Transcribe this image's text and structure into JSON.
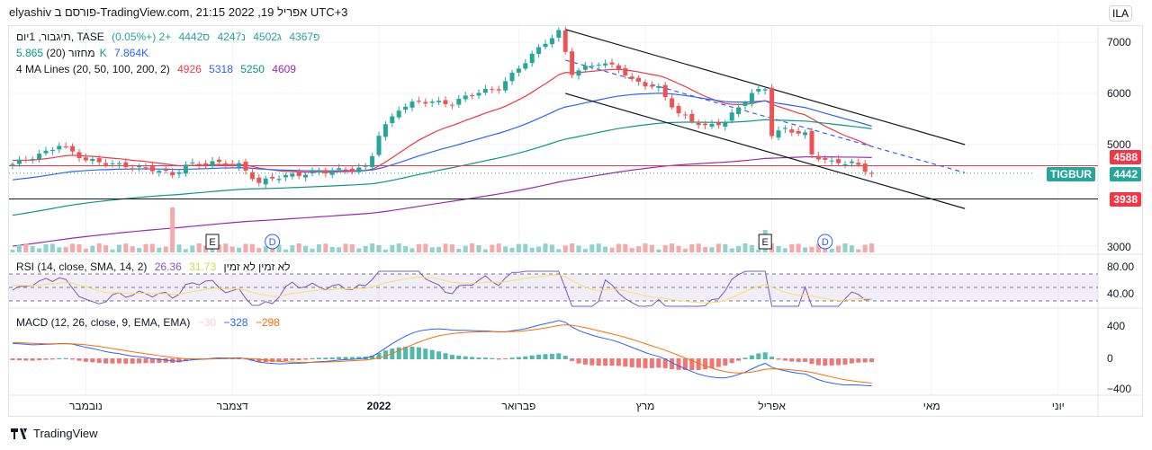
{
  "header": "elyashiv פורסם ב-TradingView.com, 21:15 2022 ,19 אפריל UTC+3",
  "legend": {
    "symbol": "תיגבור, 1יום, TASE",
    "open": "פ4367",
    "high": "ג4502",
    "low": "נ4247",
    "close": "ס4442",
    "change": "+2 (+0.05%)",
    "volume_label": "מחזור (20)",
    "volume_v1": "5.865K",
    "volume_v2": "7.864K",
    "ma_label": "4 MA Lines (20, 50, 100, 200, 2)",
    "ma20": "4926",
    "ma50": "5318",
    "ma100": "5250",
    "ma200": "4609",
    "rsi_label": "RSI (14, close, SMA, 14, 2)",
    "rsi_v": "26.36",
    "rsi_sma": "31.73",
    "rsi_na": "לא זמין  לא זמין",
    "macd_label": "MACD (12, 26, close, 9, EMA, EMA)",
    "macd_hist": "−30",
    "macd_v": "−328",
    "macd_sig": "−298"
  },
  "currency": "ILA",
  "price_tags": {
    "high_line": "4588",
    "ticker": "TIGBUR",
    "last": "4442",
    "low_line": "3938"
  },
  "colors": {
    "up": "#26a69a",
    "down": "#ef5350",
    "ma20": "#f23645",
    "ma50": "#2962ff",
    "ma100": "#089981",
    "ma200": "#9c27b0"
  },
  "footer": "TradingView",
  "chart_data": {
    "type": "candlestick",
    "y_ticks": [
      "7000",
      "6000",
      "5000",
      "3000"
    ],
    "ylim": [
      2950,
      7350
    ],
    "x_ticks": [
      "נובמבר",
      "דצמבר",
      "2022",
      "פברואר",
      "מרץ",
      "אפריל",
      "מאי",
      "יוני"
    ],
    "x_tick_days": [
      11,
      33,
      55,
      76,
      95,
      114,
      138,
      157
    ],
    "close_anchors": [
      [
        0,
        4620
      ],
      [
        5,
        4850
      ],
      [
        7,
        5000
      ],
      [
        11,
        4700
      ],
      [
        16,
        4600
      ],
      [
        22,
        4500
      ],
      [
        24,
        4400
      ],
      [
        26,
        4600
      ],
      [
        30,
        4650
      ],
      [
        34,
        4600
      ],
      [
        37,
        4250
      ],
      [
        39,
        4350
      ],
      [
        45,
        4450
      ],
      [
        53,
        4550
      ],
      [
        54,
        4800
      ],
      [
        55,
        5200
      ],
      [
        58,
        5700
      ],
      [
        61,
        5850
      ],
      [
        66,
        5800
      ],
      [
        69,
        6000
      ],
      [
        73,
        6100
      ],
      [
        76,
        6500
      ],
      [
        80,
        7000
      ],
      [
        82,
        7200
      ],
      [
        83,
        6800
      ],
      [
        84,
        6400
      ],
      [
        88,
        6600
      ],
      [
        91,
        6500
      ],
      [
        93,
        6250
      ],
      [
        97,
        6100
      ],
      [
        100,
        5600
      ],
      [
        104,
        5350
      ],
      [
        107,
        5450
      ],
      [
        111,
        6000
      ],
      [
        113,
        6100
      ],
      [
        114,
        5200
      ],
      [
        116,
        5300
      ],
      [
        119,
        5200
      ],
      [
        120,
        4800
      ],
      [
        123,
        4650
      ],
      [
        126,
        4650
      ],
      [
        128,
        4500
      ],
      [
        129,
        4442
      ]
    ],
    "horizontal_lines": [
      4588,
      3938
    ],
    "trend_lines": [
      {
        "from": [
          83,
          7250
        ],
        "to": [
          143,
          5000
        ],
        "style": "solid"
      },
      {
        "from": [
          83,
          6000
        ],
        "to": [
          143,
          3750
        ],
        "style": "solid"
      },
      {
        "from": [
          83,
          6650
        ],
        "to": [
          143,
          4450
        ],
        "style": "dashed"
      }
    ],
    "events": [
      {
        "day": 30,
        "label": "E"
      },
      {
        "day": 39,
        "label": "D"
      },
      {
        "day": 113,
        "label": "E"
      },
      {
        "day": 122,
        "label": "D"
      }
    ],
    "rsi_ticks": [
      "80.00",
      "40.00"
    ],
    "macd_ticks": [
      "400",
      "0",
      "−400"
    ]
  }
}
